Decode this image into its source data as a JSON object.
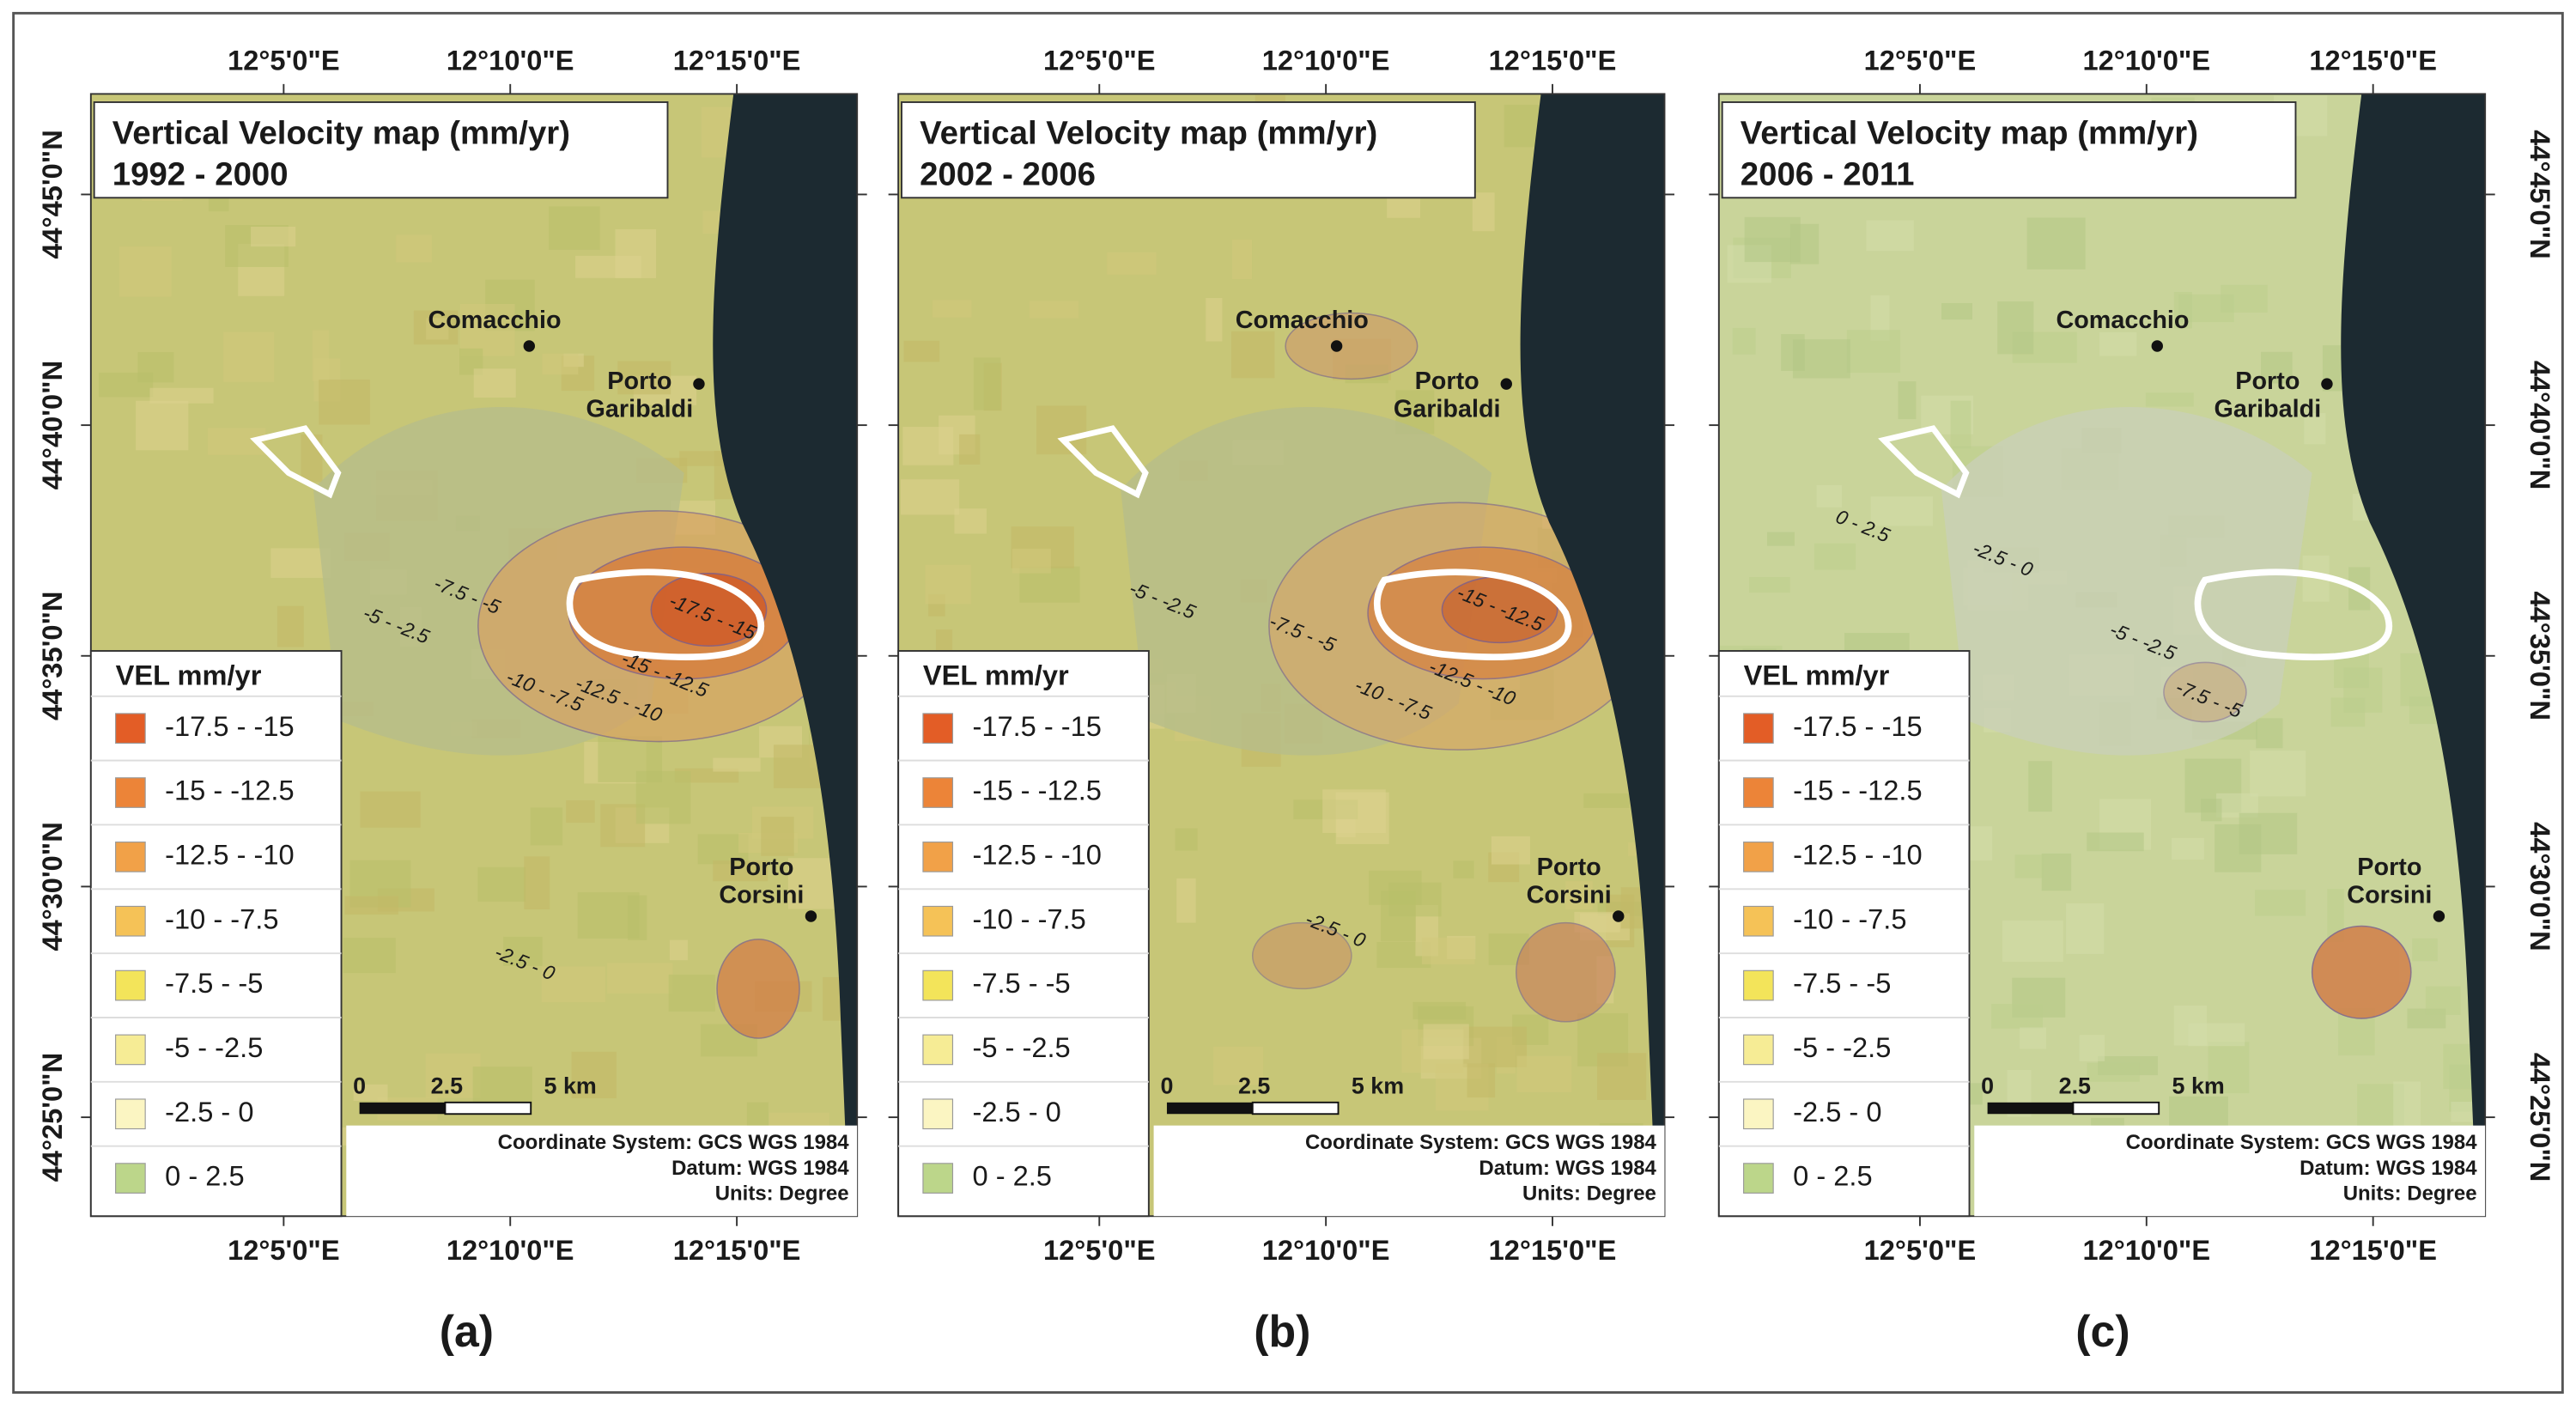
{
  "panels": [
    {
      "title": "Vertical Velocity map (mm/yr)",
      "period": "1992 - 2000",
      "caption": "(a)",
      "contour_labels": [
        "-17.5 - -15",
        "-7.5 - -5",
        "-5 - -2.5",
        "-15 - -12.5",
        "-12.5 - -10",
        "-10 - -7.5",
        "-2.5 - 0"
      ]
    },
    {
      "title": "Vertical Velocity map (mm/yr)",
      "period": "2002 - 2006",
      "caption": "(b)",
      "contour_labels": [
        "-15 - -12.5",
        "-5 - -2.5",
        "-7.5 - -5",
        "-12.5 - -10",
        "-10 - -7.5",
        "-2.5 - 0"
      ]
    },
    {
      "title": "Vertical Velocity map (mm/yr)",
      "period": "2006 - 2011",
      "caption": "(c)",
      "contour_labels": [
        "0 - 2.5",
        "-2.5 - 0",
        "-5 - -2.5",
        "-7.5 - -5"
      ]
    }
  ],
  "places": [
    {
      "lines": [
        "Comacchio"
      ]
    },
    {
      "lines": [
        "Porto",
        "Garibaldi"
      ]
    },
    {
      "lines": [
        "Porto",
        "Corsini"
      ]
    }
  ],
  "legend": {
    "title": "VEL mm/yr",
    "items": [
      {
        "label": "-17.5 - -15",
        "color": "#e35d26"
      },
      {
        "label": "-15 - -12.5",
        "color": "#ec8438"
      },
      {
        "label": "-12.5 - -10",
        "color": "#f1a148"
      },
      {
        "label": "-10 - -7.5",
        "color": "#f5c257"
      },
      {
        "label": "-7.5 - -5",
        "color": "#f3e45a"
      },
      {
        "label": "-5 - -2.5",
        "color": "#f6ec95"
      },
      {
        "label": "-2.5 - 0",
        "color": "#fbf5c2"
      },
      {
        "label": "0 - 2.5",
        "color": "#bcd68a"
      }
    ]
  },
  "longitude_labels": [
    "12°5'0\"E",
    "12°10'0\"E",
    "12°15'0\"E"
  ],
  "latitude_labels": [
    "44°45'0\"N",
    "44°40'0\"N",
    "44°35'0\"N",
    "44°30'0\"N",
    "44°25'0\"N"
  ],
  "scale_bar": {
    "labels": [
      "0",
      "2.5",
      "5 km"
    ]
  },
  "coordinate_info": [
    "Coordinate System: GCS WGS 1984",
    "Datum: WGS 1984",
    "Units: Degree"
  ]
}
